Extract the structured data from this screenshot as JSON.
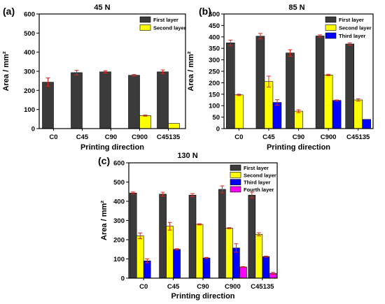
{
  "chart_data": [
    {
      "type": "bar",
      "panel_label": "(a)",
      "title": "45 N",
      "xlabel": "Printing direction",
      "ylabel": "Area / mm²",
      "ylim": [
        0,
        600
      ],
      "yticks": [
        0,
        100,
        200,
        300,
        400,
        500,
        600
      ],
      "categories": [
        "C0",
        "C45",
        "C90",
        "C900",
        "C45135"
      ],
      "legend_position": "top-right",
      "series": [
        {
          "name": "First layer",
          "color": "#3b3b3b",
          "values": [
            243,
            293,
            297,
            279,
            297
          ],
          "errors": [
            22,
            12,
            6,
            4,
            10
          ]
        },
        {
          "name": "Second layer",
          "color": "#ffff00",
          "values": [
            null,
            null,
            null,
            68,
            27
          ],
          "errors": [
            null,
            null,
            null,
            3,
            0
          ]
        }
      ]
    },
    {
      "type": "bar",
      "panel_label": "(b)",
      "title": "85 N",
      "xlabel": "Printing direction",
      "ylabel": "Area / mm²",
      "ylim": [
        0,
        500
      ],
      "yticks": [
        0,
        50,
        100,
        150,
        200,
        250,
        300,
        350,
        400,
        450,
        500
      ],
      "categories": [
        "C0",
        "C45",
        "C90",
        "C900",
        "C45135"
      ],
      "legend_position": "top-right",
      "series": [
        {
          "name": "First layer",
          "color": "#3b3b3b",
          "values": [
            374,
            403,
            330,
            404,
            369
          ],
          "errors": [
            12,
            12,
            14,
            5,
            5
          ]
        },
        {
          "name": "Second layer",
          "color": "#ffff00",
          "values": [
            147,
            205,
            76,
            234,
            125
          ],
          "errors": [
            3,
            24,
            6,
            3,
            5
          ]
        },
        {
          "name": "Third layer",
          "color": "#0000ff",
          "values": [
            null,
            114,
            null,
            123,
            40
          ],
          "errors": [
            null,
            12,
            null,
            2,
            0
          ]
        }
      ]
    },
    {
      "type": "bar",
      "panel_label": "(c)",
      "title": "130 N",
      "xlabel": "Printing direction",
      "ylabel": "Area / mm²",
      "ylim": [
        0,
        600
      ],
      "yticks": [
        0,
        100,
        200,
        300,
        400,
        500,
        600
      ],
      "categories": [
        "C0",
        "C45",
        "C90",
        "C900",
        "C45135"
      ],
      "legend_position": "top-right",
      "series": [
        {
          "name": "First layer",
          "color": "#3b3b3b",
          "values": [
            443,
            437,
            432,
            462,
            432
          ],
          "errors": [
            5,
            10,
            8,
            18,
            15
          ]
        },
        {
          "name": "Second layer",
          "color": "#ffff00",
          "values": [
            220,
            270,
            280,
            260,
            228
          ],
          "errors": [
            15,
            20,
            3,
            3,
            8
          ]
        },
        {
          "name": "Third layer",
          "color": "#0000ff",
          "values": [
            90,
            150,
            105,
            157,
            112
          ],
          "errors": [
            10,
            3,
            3,
            22,
            3
          ]
        },
        {
          "name": "Fourth layer",
          "color": "#ff00ff",
          "values": [
            null,
            null,
            null,
            58,
            25
          ],
          "errors": [
            null,
            null,
            null,
            2,
            5
          ]
        }
      ]
    }
  ]
}
